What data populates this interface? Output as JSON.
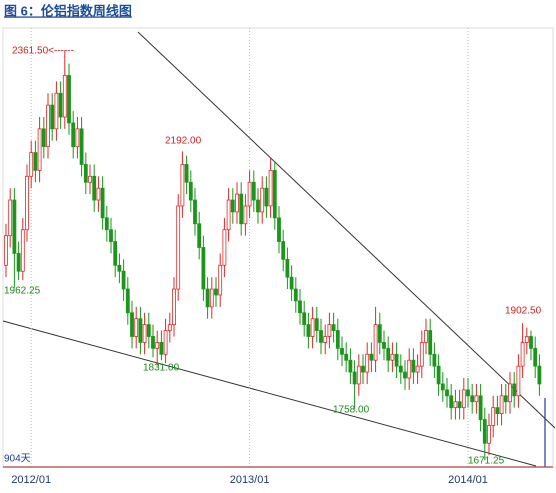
{
  "chart_data": {
    "type": "candlestick",
    "title": "图 6：伦铝指数周线图",
    "categories": [
      null,
      null,
      null,
      null,
      null,
      null,
      "2012/01",
      null,
      null,
      null,
      null,
      null,
      null,
      null,
      null,
      null,
      null,
      null,
      null,
      null,
      null,
      null,
      null,
      null,
      null,
      null,
      null,
      null,
      null,
      null,
      null,
      null,
      null,
      null,
      null,
      null,
      null,
      null,
      null,
      null,
      null,
      null,
      null,
      null,
      null,
      null,
      null,
      null,
      null,
      null,
      null,
      null,
      null,
      null,
      null,
      null,
      null,
      null,
      "2013/01",
      null,
      null,
      null,
      null,
      null,
      null,
      null,
      null,
      null,
      null,
      null,
      null,
      null,
      null,
      null,
      null,
      null,
      null,
      null,
      null,
      null,
      null,
      null,
      null,
      null,
      null,
      null,
      null,
      null,
      null,
      null,
      null,
      null,
      null,
      null,
      null,
      null,
      null,
      null,
      null,
      null,
      null,
      null,
      null,
      null,
      null,
      null,
      null,
      null,
      null,
      null,
      "2014/01",
      null,
      null,
      null,
      null,
      null,
      null,
      null,
      null,
      null,
      null,
      null,
      null,
      null,
      null,
      null,
      null,
      null
    ],
    "open": [
      2000,
      2050,
      2110,
      2020,
      1990,
      2060,
      2150,
      2190,
      2160,
      2230,
      2200,
      2270,
      2230,
      2290,
      2250,
      2320,
      2240,
      2200,
      2230,
      2170,
      2140,
      2150,
      2110,
      2130,
      2080,
      2060,
      2040,
      2000,
      1990,
      1960,
      1920,
      1880,
      1910,
      1870,
      1900,
      1880,
      1860,
      1870,
      1850,
      1890,
      1900,
      1960,
      2100,
      2170,
      2140,
      2110,
      2070,
      2030,
      1960,
      1930,
      1960,
      1950,
      2000,
      2060,
      2110,
      2090,
      2120,
      2070,
      2100,
      2140,
      2110,
      2090,
      2130,
      2100,
      2160,
      2080,
      2040,
      2010,
      1980,
      1960,
      1940,
      1920,
      1900,
      1880,
      1910,
      1890,
      1870,
      1880,
      1900,
      1890,
      1860,
      1850,
      1840,
      1820,
      1800,
      1830,
      1820,
      1850,
      1840,
      1900,
      1870,
      1860,
      1840,
      1850,
      1830,
      1820,
      1810,
      1840,
      1820,
      1830,
      1870,
      1890,
      1850,
      1830,
      1800,
      1790,
      1780,
      1760,
      1770,
      1760,
      1790,
      1780,
      1770,
      1780,
      1740,
      1700,
      1730,
      1760,
      1750,
      1780,
      1770,
      1800,
      1780,
      1830,
      1870,
      1880,
      1860,
      1830
    ],
    "high": [
      2070,
      2130,
      2130,
      2040,
      2080,
      2170,
      2210,
      2210,
      2250,
      2250,
      2290,
      2290,
      2310,
      2310,
      2361.5,
      2340,
      2260,
      2250,
      2250,
      2190,
      2170,
      2170,
      2150,
      2150,
      2100,
      2080,
      2060,
      2020,
      2010,
      1980,
      1940,
      1930,
      1930,
      1920,
      1920,
      1900,
      1890,
      1890,
      1910,
      1920,
      1980,
      2120,
      2192,
      2185,
      2160,
      2130,
      2090,
      2050,
      1980,
      1980,
      1980,
      2020,
      2080,
      2130,
      2130,
      2140,
      2140,
      2120,
      2160,
      2160,
      2130,
      2150,
      2150,
      2180,
      2175,
      2100,
      2060,
      2030,
      2000,
      1980,
      1960,
      1940,
      1920,
      1930,
      1930,
      1910,
      1900,
      1920,
      1920,
      1910,
      1880,
      1870,
      1860,
      1840,
      1850,
      1850,
      1870,
      1870,
      1930,
      1920,
      1890,
      1880,
      1870,
      1870,
      1850,
      1840,
      1860,
      1860,
      1850,
      1890,
      1910,
      1910,
      1870,
      1850,
      1820,
      1810,
      1800,
      1790,
      1790,
      1810,
      1810,
      1800,
      1800,
      1800,
      1760,
      1750,
      1780,
      1780,
      1800,
      1800,
      1820,
      1820,
      1850,
      1902.5,
      1895,
      1890,
      1880,
      1850
    ],
    "low": [
      1980,
      2030,
      1962.25,
      1975,
      1975,
      2040,
      2130,
      2140,
      2140,
      2180,
      2180,
      2210,
      2210,
      2230,
      2230,
      2220,
      2180,
      2180,
      2150,
      2120,
      2120,
      2090,
      2090,
      2060,
      2040,
      2020,
      1980,
      1970,
      1940,
      1900,
      1860,
      1860,
      1850,
      1850,
      1860,
      1845,
      1831,
      1840,
      1835,
      1870,
      1880,
      1940,
      2080,
      2120,
      2090,
      2050,
      2010,
      1940,
      1910,
      1910,
      1930,
      1930,
      1980,
      2040,
      2070,
      2070,
      2050,
      2050,
      2080,
      2090,
      2070,
      2070,
      2080,
      2080,
      2060,
      2020,
      1990,
      1960,
      1940,
      1920,
      1900,
      1880,
      1860,
      1860,
      1870,
      1850,
      1850,
      1860,
      1870,
      1840,
      1830,
      1820,
      1800,
      1758,
      1780,
      1800,
      1800,
      1820,
      1820,
      1850,
      1840,
      1820,
      1820,
      1810,
      1800,
      1790,
      1790,
      1800,
      1800,
      1810,
      1850,
      1830,
      1810,
      1780,
      1770,
      1760,
      1740,
      1740,
      1740,
      1740,
      1760,
      1750,
      1750,
      1720,
      1671.25,
      1680,
      1710,
      1730,
      1730,
      1750,
      1750,
      1760,
      1760,
      1810,
      1850,
      1840,
      1810,
      1780
    ],
    "close": [
      2050,
      2110,
      2020,
      1990,
      2060,
      2150,
      2190,
      2160,
      2230,
      2200,
      2270,
      2230,
      2290,
      2250,
      2320,
      2240,
      2200,
      2230,
      2170,
      2140,
      2150,
      2110,
      2130,
      2080,
      2060,
      2040,
      2000,
      1990,
      1960,
      1920,
      1880,
      1910,
      1870,
      1900,
      1880,
      1860,
      1870,
      1850,
      1890,
      1900,
      1960,
      2100,
      2170,
      2140,
      2110,
      2070,
      2030,
      1960,
      1930,
      1960,
      1950,
      2000,
      2060,
      2110,
      2090,
      2120,
      2070,
      2100,
      2140,
      2110,
      2090,
      2130,
      2100,
      2160,
      2080,
      2040,
      2010,
      1980,
      1960,
      1940,
      1920,
      1900,
      1880,
      1910,
      1890,
      1870,
      1880,
      1900,
      1890,
      1860,
      1850,
      1840,
      1820,
      1800,
      1830,
      1820,
      1850,
      1840,
      1900,
      1870,
      1860,
      1840,
      1850,
      1830,
      1820,
      1810,
      1840,
      1820,
      1830,
      1870,
      1890,
      1850,
      1830,
      1800,
      1790,
      1780,
      1760,
      1770,
      1760,
      1790,
      1780,
      1770,
      1780,
      1740,
      1700,
      1730,
      1760,
      1750,
      1780,
      1770,
      1800,
      1780,
      1830,
      1870,
      1880,
      1860,
      1830,
      1800
    ],
    "up_color": "#e02828",
    "down_color": "#1a961a",
    "ylim": [
      1660,
      2400
    ],
    "annotations": [
      "2361.50<------",
      "1962.25",
      "2192.00",
      "1831.00",
      "1758.00",
      "1902.50",
      "1671.25",
      "904天"
    ]
  }
}
